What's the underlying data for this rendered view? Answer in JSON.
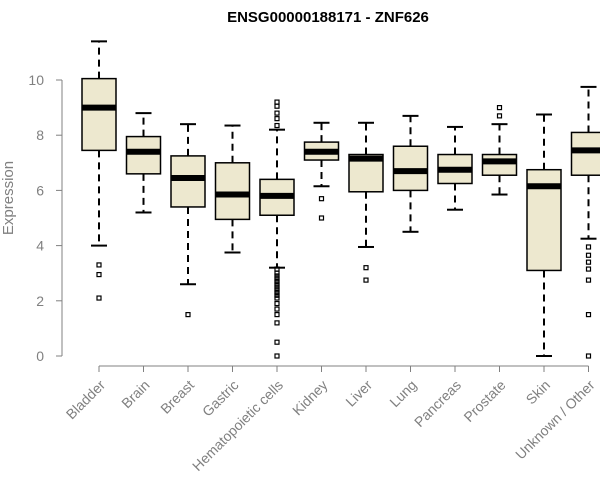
{
  "chart_data": {
    "type": "boxplot",
    "title": "ENSG00000188171 - ZNF626",
    "xlabel": "",
    "ylabel": "Expression",
    "ylim": [
      0,
      11.5
    ],
    "yticks": [
      0,
      2,
      4,
      6,
      8,
      10
    ],
    "grid": false,
    "legend": "none",
    "colors": {
      "box_fill": "#ede8cf",
      "box_stroke": "#000000",
      "axis": "#808080",
      "text": "#808080"
    },
    "categories": [
      "Bladder",
      "Brain",
      "Breast",
      "Gastric",
      "Hematopoietic cells",
      "Kidney",
      "Liver",
      "Lung",
      "Pancreas",
      "Prostate",
      "Skin",
      "Unknown / Other"
    ],
    "boxes": [
      {
        "category": "Bladder",
        "low": 4.0,
        "q1": 7.45,
        "median": 9.0,
        "q3": 10.05,
        "high": 11.4,
        "outliers": [
          3.3,
          2.95,
          2.1
        ]
      },
      {
        "category": "Brain",
        "low": 5.2,
        "q1": 6.6,
        "median": 7.4,
        "q3": 7.95,
        "high": 8.8,
        "outliers": []
      },
      {
        "category": "Breast",
        "low": 2.6,
        "q1": 5.4,
        "median": 6.45,
        "q3": 7.25,
        "high": 8.4,
        "outliers": [
          1.5
        ]
      },
      {
        "category": "Gastric",
        "low": 3.75,
        "q1": 4.95,
        "median": 5.85,
        "q3": 7.0,
        "high": 8.35,
        "outliers": []
      },
      {
        "category": "Hematopoietic cells",
        "low": 3.2,
        "q1": 5.1,
        "median": 5.8,
        "q3": 6.4,
        "high": 8.2,
        "outliers": [
          9.2,
          9.05,
          8.8,
          8.6,
          8.35,
          3.15,
          3.0,
          2.9,
          2.8,
          2.7,
          2.6,
          2.5,
          2.4,
          2.3,
          2.2,
          2.1,
          1.9,
          1.7,
          1.5,
          1.2,
          0.5,
          0.0
        ]
      },
      {
        "category": "Kidney",
        "low": 6.15,
        "q1": 7.1,
        "median": 7.4,
        "q3": 7.75,
        "high": 8.45,
        "outliers": [
          5.7,
          5.0
        ]
      },
      {
        "category": "Liver",
        "low": 3.95,
        "q1": 5.95,
        "median": 7.15,
        "q3": 7.3,
        "high": 8.45,
        "outliers": [
          3.2,
          2.75
        ]
      },
      {
        "category": "Lung",
        "low": 4.5,
        "q1": 6.0,
        "median": 6.7,
        "q3": 7.6,
        "high": 8.7,
        "outliers": []
      },
      {
        "category": "Pancreas",
        "low": 5.3,
        "q1": 6.25,
        "median": 6.75,
        "q3": 7.3,
        "high": 8.3,
        "outliers": []
      },
      {
        "category": "Prostate",
        "low": 5.85,
        "q1": 6.55,
        "median": 7.05,
        "q3": 7.3,
        "high": 8.4,
        "outliers": [
          9.0,
          8.7
        ]
      },
      {
        "category": "Skin",
        "low": 0.0,
        "q1": 3.1,
        "median": 6.15,
        "q3": 6.75,
        "high": 8.75,
        "outliers": []
      },
      {
        "category": "Unknown / Other",
        "low": 4.25,
        "q1": 6.55,
        "median": 7.45,
        "q3": 8.1,
        "high": 9.75,
        "outliers": [
          3.95,
          3.65,
          3.4,
          3.15,
          2.75,
          1.5,
          0.0
        ]
      }
    ]
  }
}
